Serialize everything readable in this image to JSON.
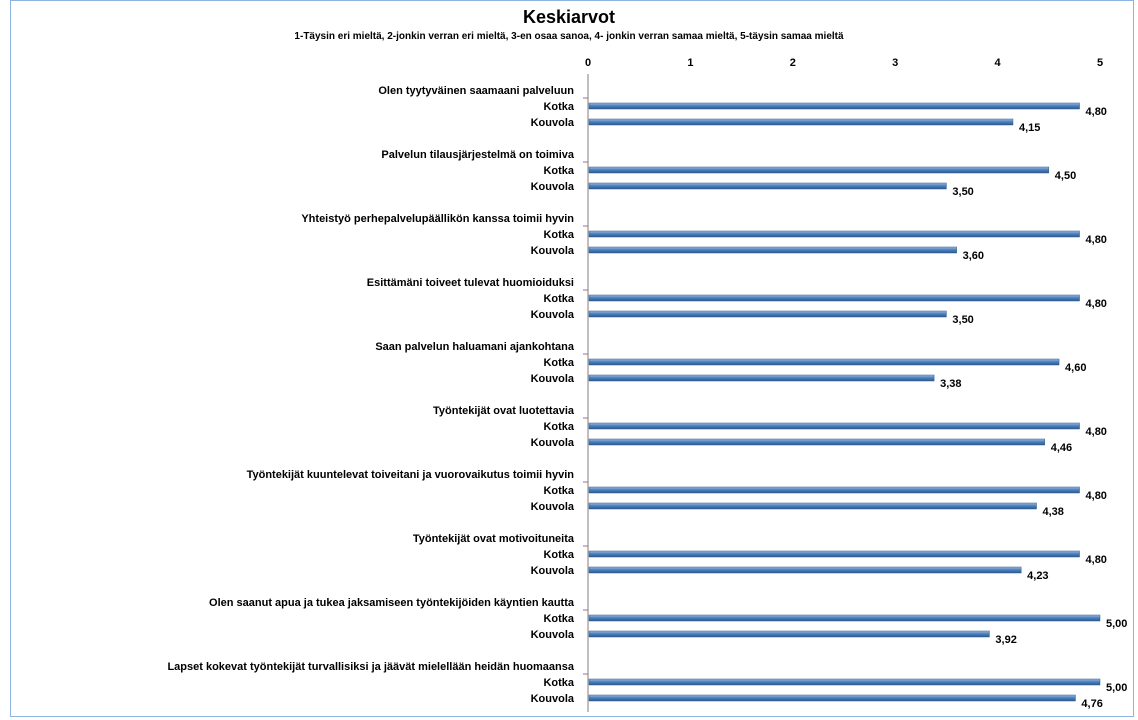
{
  "chart_data": {
    "type": "bar",
    "orientation": "horizontal",
    "title": "Keskiarvot",
    "subtitle": "1-Täysin eri mieltä, 2-jonkin verran eri mieltä, 3-en osaa sanoa, 4- jonkin verran samaa mieltä, 5-täysin samaa mieltä",
    "xlim": [
      0,
      5
    ],
    "x_ticks": [
      "0",
      "1",
      "2",
      "3",
      "4",
      "5"
    ],
    "x_axis_position": "top",
    "grid": false,
    "bar_color": "#4f81bd",
    "groups": [
      {
        "label": "Olen tyytyväinen saamaani palveluun",
        "rows": [
          {
            "name": "Kotka",
            "value": 4.8,
            "value_label": "4,80"
          },
          {
            "name": "Kouvola",
            "value": 4.15,
            "value_label": "4,15"
          }
        ]
      },
      {
        "label": "Palvelun tilausjärjestelmä on toimiva",
        "rows": [
          {
            "name": "Kotka",
            "value": 4.5,
            "value_label": "4,50"
          },
          {
            "name": "Kouvola",
            "value": 3.5,
            "value_label": "3,50"
          }
        ]
      },
      {
        "label": "Yhteistyö perhepalvelupäällikön kanssa toimii hyvin",
        "rows": [
          {
            "name": "Kotka",
            "value": 4.8,
            "value_label": "4,80"
          },
          {
            "name": "Kouvola",
            "value": 3.6,
            "value_label": "3,60"
          }
        ]
      },
      {
        "label": "Esittämäni toiveet tulevat huomioiduksi",
        "rows": [
          {
            "name": "Kotka",
            "value": 4.8,
            "value_label": "4,80"
          },
          {
            "name": "Kouvola",
            "value": 3.5,
            "value_label": "3,50"
          }
        ]
      },
      {
        "label": "Saan palvelun haluamani ajankohtana",
        "rows": [
          {
            "name": "Kotka",
            "value": 4.6,
            "value_label": "4,60"
          },
          {
            "name": "Kouvola",
            "value": 3.38,
            "value_label": "3,38"
          }
        ]
      },
      {
        "label": "Työntekijät ovat luotettavia",
        "rows": [
          {
            "name": "Kotka",
            "value": 4.8,
            "value_label": "4,80"
          },
          {
            "name": "Kouvola",
            "value": 4.46,
            "value_label": "4,46"
          }
        ]
      },
      {
        "label": "Työntekijät kuuntelevat toiveitani ja vuorovaikutus toimii hyvin",
        "rows": [
          {
            "name": "Kotka",
            "value": 4.8,
            "value_label": "4,80"
          },
          {
            "name": "Kouvola",
            "value": 4.38,
            "value_label": "4,38"
          }
        ]
      },
      {
        "label": "Työntekijät ovat motivoituneita",
        "rows": [
          {
            "name": "Kotka",
            "value": 4.8,
            "value_label": "4,80"
          },
          {
            "name": "Kouvola",
            "value": 4.23,
            "value_label": "4,23"
          }
        ]
      },
      {
        "label": "Olen saanut apua ja tukea jaksamiseen työntekijöiden käyntien kautta",
        "rows": [
          {
            "name": "Kotka",
            "value": 5.0,
            "value_label": "5,00"
          },
          {
            "name": "Kouvola",
            "value": 3.92,
            "value_label": "3,92"
          }
        ]
      },
      {
        "label": "Lapset kokevat työntekijät turvallisiksi ja jäävät mielellään heidän huomaansa",
        "rows": [
          {
            "name": "Kotka",
            "value": 5.0,
            "value_label": "5,00"
          },
          {
            "name": "Kouvola",
            "value": 4.76,
            "value_label": "4,76"
          }
        ]
      }
    ]
  }
}
